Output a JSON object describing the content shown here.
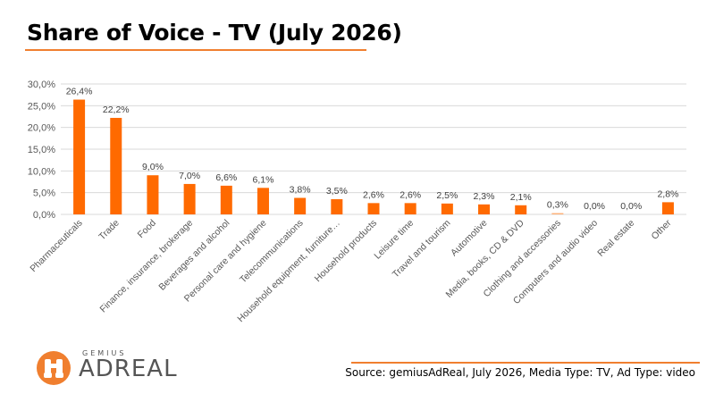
{
  "title": "Share of Voice - TV (July 2026)",
  "source": "Source: gemiusAdReal, July 2026, Media Type: TV, Ad Type: video",
  "logo": {
    "small_text": "GEMIUS",
    "big_text": "ADREAL"
  },
  "colors": {
    "accent": "#f07f2f",
    "bar": "#ff6a00",
    "grid": "#d9d9d9"
  },
  "chart_data": {
    "type": "bar",
    "title": "",
    "xlabel": "",
    "ylabel": "",
    "ylim": [
      0,
      30
    ],
    "grid": true,
    "y_ticks": [
      "0,0%",
      "5,0%",
      "10,0%",
      "15,0%",
      "20,0%",
      "25,0%",
      "30,0%"
    ],
    "categories": [
      "Pharmaceuticals",
      "Trade",
      "Food",
      "Finance, insurance, brokerage",
      "Beverages and alcohol",
      "Personal care and hygiene",
      "Telecommunications",
      "Household equipment, furniture…",
      "Household products",
      "Leisure time",
      "Travel and tourism",
      "Automotive",
      "Media, books, CD & DVD",
      "Clothing and accessories",
      "Computers and audio video",
      "Real estate",
      "Other"
    ],
    "values": [
      26.4,
      22.2,
      9.0,
      7.0,
      6.6,
      6.1,
      3.8,
      3.5,
      2.6,
      2.6,
      2.5,
      2.3,
      2.1,
      0.3,
      0.0,
      0.0,
      2.8
    ],
    "data_labels": [
      "26,4%",
      "22,2%",
      "9,0%",
      "7,0%",
      "6,6%",
      "6,1%",
      "3,8%",
      "3,5%",
      "2,6%",
      "2,6%",
      "2,5%",
      "2,3%",
      "2,1%",
      "0,3%",
      "0,0%",
      "0,0%",
      "2,8%"
    ]
  }
}
